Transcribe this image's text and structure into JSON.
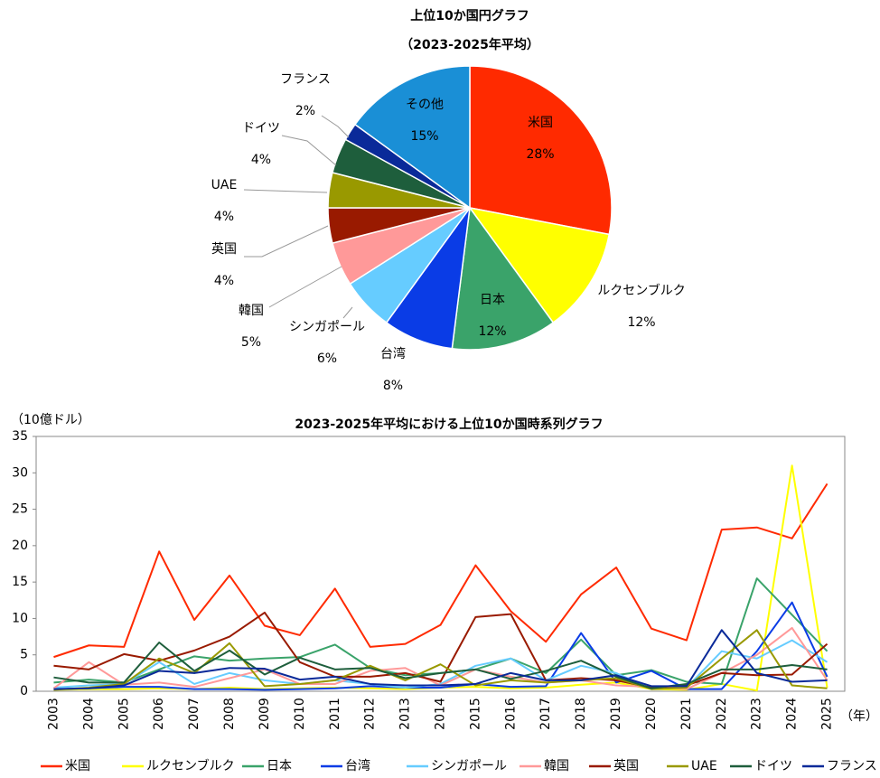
{
  "chart_data": [
    {
      "type": "pie",
      "title": "上位10か国円グラフ",
      "subtitle": "（2023-2025年平均）",
      "categories": [
        "米国",
        "ルクセンブルク",
        "日本",
        "台湾",
        "シンガポール",
        "韓国",
        "英国",
        "UAE",
        "ドイツ",
        "フランス",
        "その他"
      ],
      "values": [
        28,
        12,
        12,
        8,
        6,
        5,
        4,
        4,
        4,
        2,
        15
      ],
      "value_labels": [
        "28%",
        "12%",
        "12%",
        "8%",
        "6%",
        "5%",
        "4%",
        "4%",
        "4%",
        "2%",
        "15%"
      ],
      "colors": [
        "#ff2a00",
        "#ffff00",
        "#3aa36a",
        "#0a3ce6",
        "#66ccff",
        "#ff9999",
        "#991a00",
        "#999900",
        "#1e5e3c",
        "#0a2a99",
        "#1a8fd6"
      ]
    },
    {
      "type": "line",
      "title": "2023-2025年平均における上位10か国時系列グラフ",
      "ylabel": "（10億ドル）",
      "xlabel": "（年）",
      "x": [
        2003,
        2004,
        2005,
        2006,
        2007,
        2008,
        2009,
        2010,
        2011,
        2012,
        2013,
        2014,
        2015,
        2016,
        2017,
        2018,
        2019,
        2020,
        2021,
        2022,
        2023,
        2024,
        2025
      ],
      "ylim": [
        0,
        35
      ],
      "yticks": [
        0,
        5,
        10,
        15,
        20,
        25,
        30,
        35
      ],
      "legend": "bottom",
      "series": [
        {
          "name": "米国",
          "color": "#ff2a00",
          "values": [
            4.7,
            6.3,
            6.1,
            19.2,
            9.8,
            15.9,
            9.0,
            7.7,
            14.1,
            6.1,
            6.5,
            9.1,
            17.3,
            11.0,
            6.8,
            13.3,
            17.0,
            8.6,
            7.0,
            22.2,
            22.5,
            21.0,
            28.5
          ]
        },
        {
          "name": "ルクセンブルク",
          "color": "#ffff00",
          "values": [
            0.2,
            0.3,
            0.3,
            0.4,
            0.3,
            0.5,
            0.3,
            0.4,
            0.5,
            0.4,
            0.3,
            0.5,
            0.6,
            0.4,
            0.5,
            0.9,
            1.2,
            0.3,
            0.2,
            1.0,
            0.1,
            31.0,
            0.5
          ]
        },
        {
          "name": "日本",
          "color": "#3aa36a",
          "values": [
            1.2,
            1.6,
            1.2,
            3.0,
            4.8,
            4.2,
            4.5,
            4.7,
            6.4,
            3.2,
            2.2,
            2.5,
            3.0,
            4.5,
            2.5,
            7.1,
            2.2,
            2.9,
            1.3,
            1.0,
            15.5,
            10.5,
            5.5
          ]
        },
        {
          "name": "台湾",
          "color": "#0a3ce6",
          "values": [
            0.3,
            0.4,
            0.6,
            0.6,
            0.3,
            0.3,
            0.2,
            0.3,
            0.4,
            0.7,
            0.5,
            0.5,
            1.0,
            0.6,
            0.7,
            8.0,
            1.2,
            2.8,
            0.3,
            0.3,
            5.5,
            12.2,
            2.0
          ]
        },
        {
          "name": "シンガポール",
          "color": "#66ccff",
          "values": [
            0.5,
            0.8,
            1.0,
            4.0,
            1.0,
            2.5,
            1.5,
            1.0,
            1.5,
            1.0,
            0.5,
            1.0,
            3.5,
            4.5,
            1.5,
            3.5,
            2.5,
            0.3,
            0.5,
            5.5,
            4.5,
            7.0,
            4.0
          ]
        },
        {
          "name": "韓国",
          "color": "#ff9999",
          "values": [
            0.4,
            4.0,
            0.9,
            1.2,
            0.6,
            1.8,
            3.0,
            1.0,
            1.0,
            2.8,
            3.2,
            0.8,
            3.0,
            2.0,
            1.2,
            1.5,
            0.8,
            0.6,
            0.3,
            2.5,
            5.0,
            8.7,
            1.5
          ]
        },
        {
          "name": "英国",
          "color": "#991a00",
          "values": [
            3.5,
            3.0,
            5.1,
            4.2,
            5.6,
            7.5,
            10.8,
            4.0,
            2.0,
            2.0,
            2.5,
            1.3,
            10.2,
            10.6,
            1.5,
            1.8,
            1.5,
            0.5,
            0.8,
            2.5,
            2.2,
            2.3,
            6.5
          ]
        },
        {
          "name": "UAE",
          "color": "#999900",
          "values": [
            0.2,
            0.5,
            1.0,
            4.5,
            2.5,
            6.6,
            0.7,
            1.0,
            1.5,
            3.5,
            1.5,
            3.7,
            0.8,
            1.5,
            1.2,
            1.5,
            1.8,
            0.3,
            0.5,
            4.5,
            8.4,
            0.8,
            0.4
          ]
        },
        {
          "name": "ドイツ",
          "color": "#1e5e3c",
          "values": [
            1.9,
            1.2,
            1.2,
            6.7,
            2.8,
            5.6,
            2.3,
            4.6,
            3.0,
            3.2,
            1.8,
            2.5,
            3.0,
            1.7,
            2.8,
            4.2,
            2.0,
            0.4,
            1.0,
            3.0,
            3.0,
            3.6,
            3.0
          ]
        },
        {
          "name": "フランス",
          "color": "#0a2a99",
          "values": [
            0.3,
            0.4,
            0.8,
            2.8,
            2.5,
            3.2,
            3.1,
            1.6,
            2.0,
            1.0,
            0.8,
            0.8,
            1.0,
            2.5,
            1.5,
            1.5,
            2.2,
            0.7,
            0.7,
            8.4,
            2.5,
            1.3,
            1.5
          ]
        }
      ]
    }
  ]
}
